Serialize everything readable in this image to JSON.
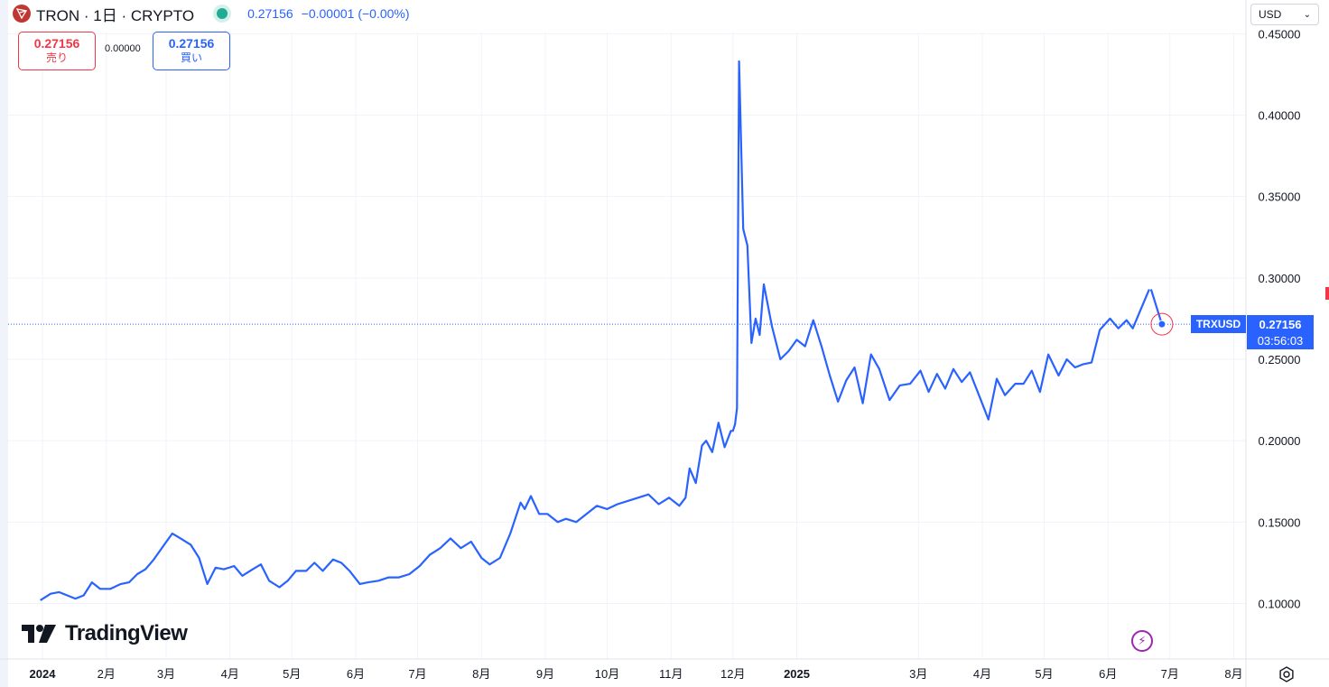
{
  "header": {
    "title": "TRON · 1日 · CRYPTO",
    "price": "0.27156",
    "change": "−0.00001 (−0.00%)"
  },
  "trade": {
    "sell_price": "0.27156",
    "sell_label": "売り",
    "spread": "0.00000",
    "buy_price": "0.27156",
    "buy_label": "買い"
  },
  "currency": {
    "label": "USD"
  },
  "branding": {
    "logo_text": "TradingView"
  },
  "last_price": {
    "symbol": "TRXUSD",
    "price": "0.27156",
    "countdown": "03:56:03"
  },
  "colors": {
    "line": "#2962ff",
    "accent": "#2962ff",
    "sell": "#f23645",
    "live": "#22ab94",
    "lightning": "#9c27b0"
  },
  "chart_data": {
    "type": "line",
    "symbol": "TRXUSD",
    "grid": true,
    "ylim": [
      0.07,
      0.45
    ],
    "y_ticks": [
      "0.45000",
      "0.40000",
      "0.35000",
      "0.30000",
      "0.25000",
      "0.20000",
      "0.15000",
      "0.10000"
    ],
    "x_ticks": [
      {
        "label": "2024",
        "date": "2024-01-01",
        "bold": true
      },
      {
        "label": "2月",
        "date": "2024-02-01"
      },
      {
        "label": "3月",
        "date": "2024-03-01"
      },
      {
        "label": "4月",
        "date": "2024-04-01"
      },
      {
        "label": "5月",
        "date": "2024-05-01"
      },
      {
        "label": "6月",
        "date": "2024-06-01"
      },
      {
        "label": "7月",
        "date": "2024-07-01"
      },
      {
        "label": "8月",
        "date": "2024-08-01"
      },
      {
        "label": "9月",
        "date": "2024-09-01"
      },
      {
        "label": "10月",
        "date": "2024-10-01"
      },
      {
        "label": "11月",
        "date": "2024-11-01"
      },
      {
        "label": "12月",
        "date": "2024-12-01"
      },
      {
        "label": "2025",
        "date": "2025-01-01",
        "bold": true
      },
      {
        "label": "3月",
        "date": "2025-03-01"
      },
      {
        "label": "4月",
        "date": "2025-04-01"
      },
      {
        "label": "5月",
        "date": "2025-05-01"
      },
      {
        "label": "6月",
        "date": "2025-06-01"
      },
      {
        "label": "7月",
        "date": "2025-07-01"
      },
      {
        "label": "8月",
        "date": "2025-08-01"
      }
    ],
    "series": [
      {
        "x": [
          "2023-12-31",
          "2024-01-05",
          "2024-01-09",
          "2024-01-13",
          "2024-01-17",
          "2024-01-21",
          "2024-01-25",
          "2024-01-29",
          "2024-02-03",
          "2024-02-08",
          "2024-02-12",
          "2024-02-16",
          "2024-02-20",
          "2024-02-24",
          "2024-02-29",
          "2024-03-04",
          "2024-03-08",
          "2024-03-13",
          "2024-03-17",
          "2024-03-21",
          "2024-03-25",
          "2024-03-29",
          "2024-04-03",
          "2024-04-07",
          "2024-04-12",
          "2024-04-16",
          "2024-04-20",
          "2024-04-25",
          "2024-04-29",
          "2024-05-03",
          "2024-05-08",
          "2024-05-12",
          "2024-05-16",
          "2024-05-21",
          "2024-05-25",
          "2024-05-29",
          "2024-06-03",
          "2024-06-07",
          "2024-06-12",
          "2024-06-17",
          "2024-06-22",
          "2024-06-27",
          "2024-07-02",
          "2024-07-07",
          "2024-07-12",
          "2024-07-17",
          "2024-07-22",
          "2024-07-27",
          "2024-08-01",
          "2024-08-05",
          "2024-08-10",
          "2024-08-15",
          "2024-08-20",
          "2024-08-22",
          "2024-08-25",
          "2024-08-29",
          "2024-09-02",
          "2024-09-07",
          "2024-09-11",
          "2024-09-16",
          "2024-09-21",
          "2024-09-26",
          "2024-10-01",
          "2024-10-06",
          "2024-10-11",
          "2024-10-16",
          "2024-10-21",
          "2024-10-26",
          "2024-10-31",
          "2024-11-05",
          "2024-11-08",
          "2024-11-10",
          "2024-11-13",
          "2024-11-16",
          "2024-11-18",
          "2024-11-21",
          "2024-11-24",
          "2024-11-27",
          "2024-11-30",
          "2024-12-01",
          "2024-12-02",
          "2024-12-03",
          "2024-12-04",
          "2024-12-06",
          "2024-12-08",
          "2024-12-10",
          "2024-12-12",
          "2024-12-14",
          "2024-12-16",
          "2024-12-20",
          "2024-12-24",
          "2024-12-28",
          "2025-01-01",
          "2025-01-05",
          "2025-01-09",
          "2025-01-13",
          "2025-01-17",
          "2025-01-21",
          "2025-01-25",
          "2025-01-29",
          "2025-02-02",
          "2025-02-06",
          "2025-02-10",
          "2025-02-15",
          "2025-02-20",
          "2025-02-25",
          "2025-03-02",
          "2025-03-06",
          "2025-03-10",
          "2025-03-14",
          "2025-03-18",
          "2025-03-22",
          "2025-03-26",
          "2025-03-31",
          "2025-04-04",
          "2025-04-08",
          "2025-04-12",
          "2025-04-17",
          "2025-04-21",
          "2025-04-25",
          "2025-04-29",
          "2025-05-03",
          "2025-05-08",
          "2025-05-12",
          "2025-05-16",
          "2025-05-20",
          "2025-05-24",
          "2025-05-28",
          "2025-06-02",
          "2025-06-06",
          "2025-06-10",
          "2025-06-13",
          "2025-06-17",
          "2025-06-21"
        ],
        "values": [
          0.102,
          0.106,
          0.107,
          0.105,
          0.103,
          0.105,
          0.113,
          0.109,
          0.109,
          0.112,
          0.113,
          0.118,
          0.121,
          0.127,
          0.136,
          0.143,
          0.14,
          0.136,
          0.128,
          0.112,
          0.122,
          0.121,
          0.123,
          0.117,
          0.121,
          0.124,
          0.114,
          0.11,
          0.114,
          0.12,
          0.12,
          0.125,
          0.12,
          0.127,
          0.125,
          0.12,
          0.112,
          0.113,
          0.114,
          0.116,
          0.116,
          0.118,
          0.123,
          0.13,
          0.134,
          0.14,
          0.134,
          0.138,
          0.128,
          0.124,
          0.128,
          0.143,
          0.162,
          0.158,
          0.166,
          0.155,
          0.155,
          0.15,
          0.152,
          0.15,
          0.155,
          0.16,
          0.158,
          0.161,
          0.163,
          0.165,
          0.167,
          0.161,
          0.165,
          0.16,
          0.165,
          0.183,
          0.174,
          0.197,
          0.2,
          0.193,
          0.211,
          0.196,
          0.206,
          0.206,
          0.21,
          0.22,
          0.433,
          0.33,
          0.32,
          0.26,
          0.275,
          0.265,
          0.296,
          0.27,
          0.25,
          0.255,
          0.262,
          0.258,
          0.274,
          0.258,
          0.24,
          0.224,
          0.237,
          0.245,
          0.223,
          0.253,
          0.244,
          0.225,
          0.234,
          0.235,
          0.243,
          0.23,
          0.241,
          0.232,
          0.244,
          0.236,
          0.242,
          0.226,
          0.213,
          0.238,
          0.228,
          0.235,
          0.235,
          0.243,
          0.23,
          0.253,
          0.24,
          0.25,
          0.245,
          0.247,
          0.248,
          0.268,
          0.275,
          0.269,
          0.274,
          0.269,
          0.281,
          0.293
        ]
      }
    ],
    "last_value": 0.27156
  }
}
